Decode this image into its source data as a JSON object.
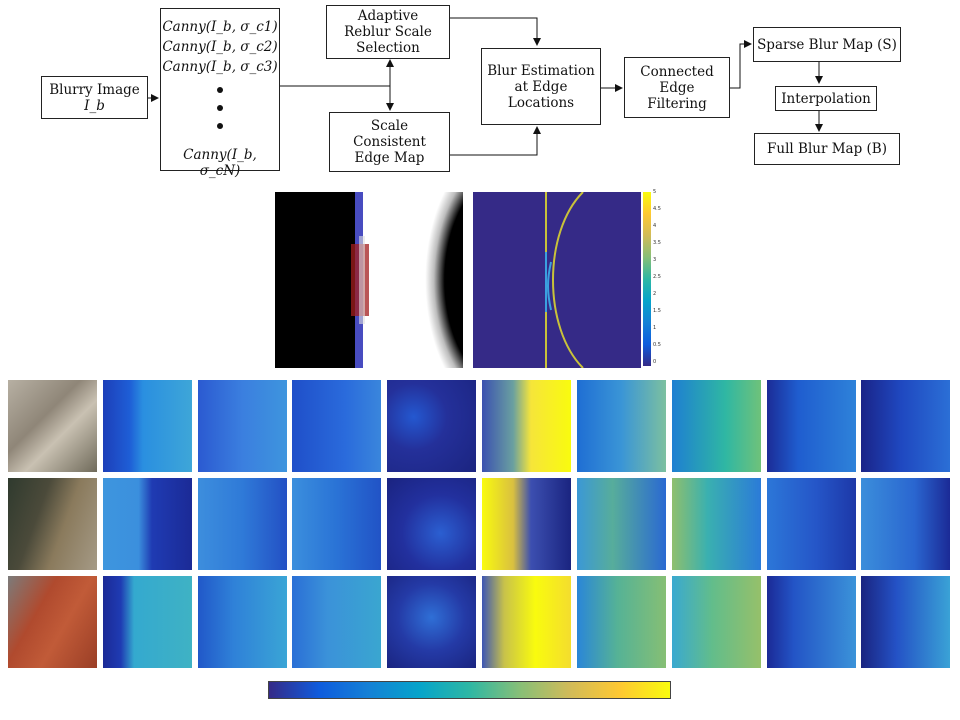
{
  "pipeline": {
    "blurry_image": {
      "line1": "Blurry Image",
      "line2": "I_b"
    },
    "canny": {
      "rows": [
        "Canny(I_b, σ_c1)",
        "Canny(I_b, σ_c2)",
        "Canny(I_b, σ_c3)"
      ],
      "last": "Canny(I_b, σ_cN)"
    },
    "adaptive": {
      "line1": "Adaptive",
      "line2": "Reblur Scale",
      "line3": "Selection"
    },
    "scale_consistent": {
      "line1": "Scale",
      "line2": "Consistent",
      "line3": "Edge Map"
    },
    "blur_estimation": {
      "line1": "Blur Estimation",
      "line2": "at Edge",
      "line3": "Locations"
    },
    "connected": {
      "line1": "Connected",
      "line2": "Edge",
      "line3": "Filtering"
    },
    "sparse": {
      "label": "Sparse Blur Map (S)"
    },
    "interpolation": {
      "label": "Interpolation"
    },
    "full": {
      "label": "Full Blur Map (B)"
    }
  },
  "demo": {
    "colorbar_ticks": [
      "5",
      "4.5",
      "4",
      "3.5",
      "3",
      "2.5",
      "2",
      "1.5",
      "1",
      "0.5",
      "0"
    ]
  },
  "grid": {
    "rows": 3,
    "columns": 10
  },
  "colors": {
    "parula_dark": "#352a87",
    "parula_blue": "#1f6ed4",
    "parula_teal": "#2fb7a3",
    "parula_yellow": "#f9fb0e"
  }
}
